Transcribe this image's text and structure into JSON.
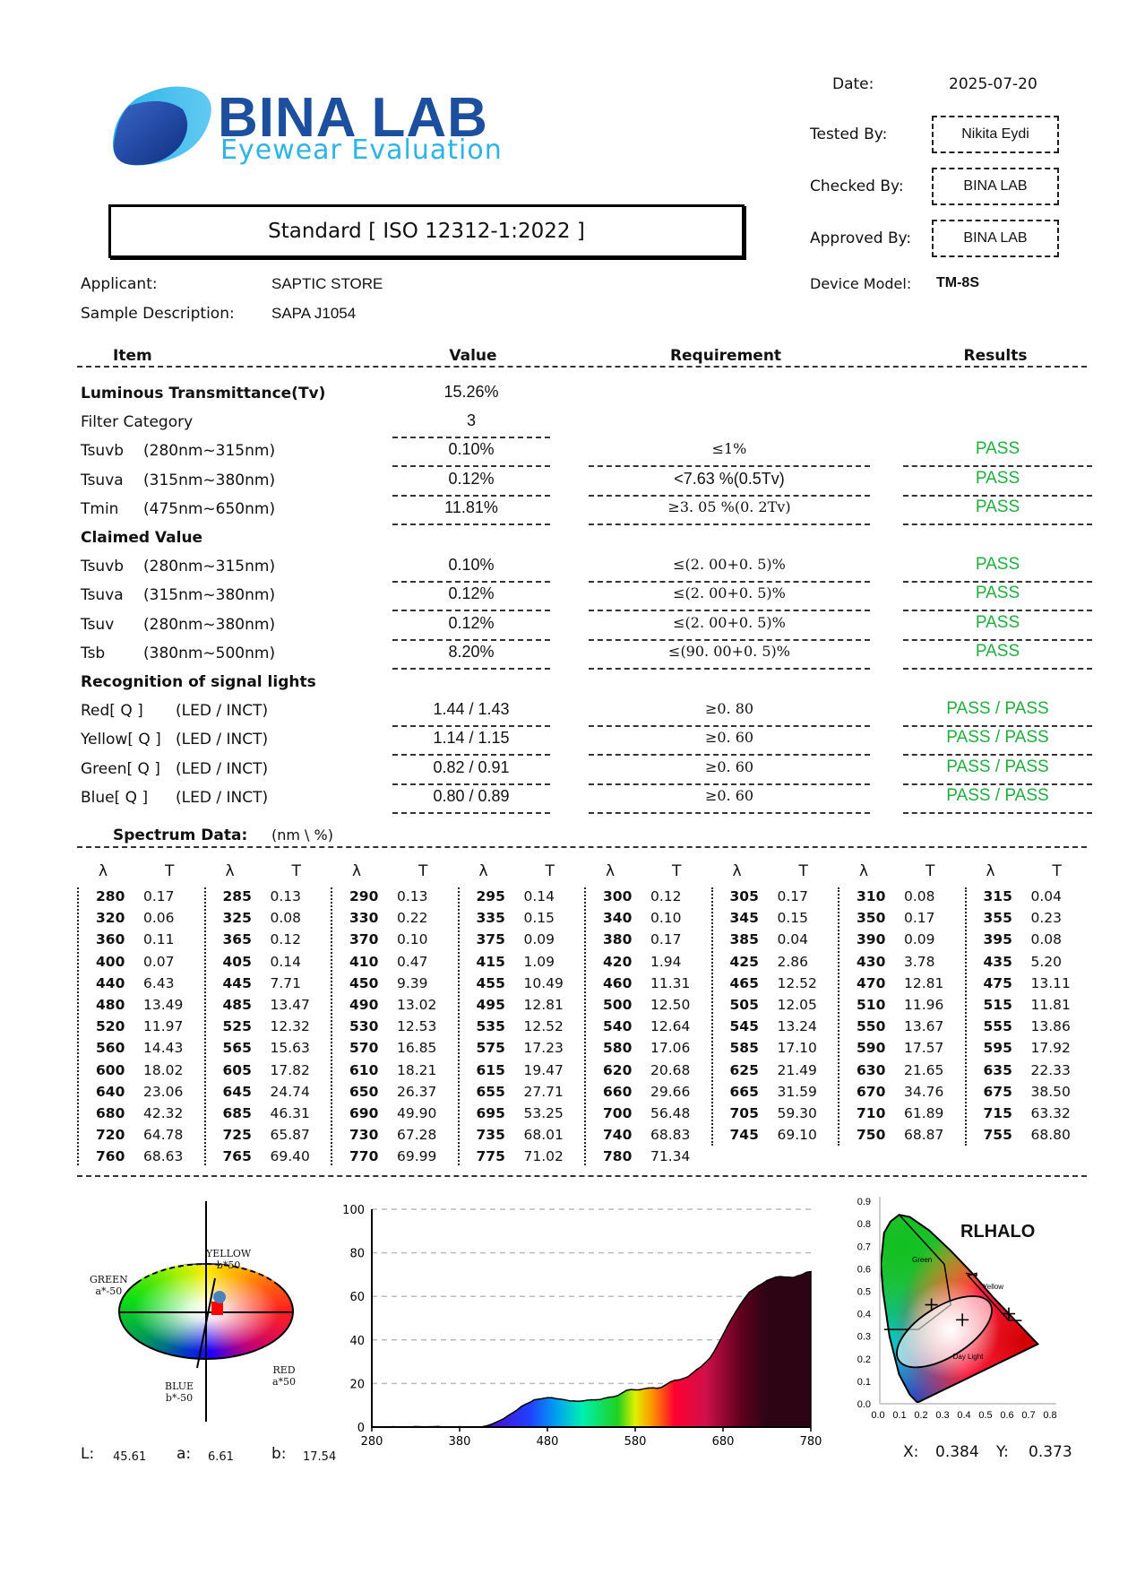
{
  "logo": {
    "name": "BINA LAB",
    "tagline": "Eyewear Evaluation"
  },
  "standard": "Standard [ ISO 12312-1:2022 ]",
  "meta": {
    "date_label": "Date:",
    "date": "2025-07-20",
    "tested_by_label": "Tested By:",
    "tested_by": "Nikita Eydi",
    "checked_by_label": "Checked By:",
    "checked_by": "BINA LAB",
    "approved_by_label": "Approved By:",
    "approved_by": "BINA LAB",
    "applicant_label": "Applicant:",
    "applicant": "SAPTIC STORE",
    "sample_label": "Sample Description:",
    "sample": "SAPA J1054",
    "device_label": "Device Model:",
    "device": "TM-8S"
  },
  "columns": {
    "item": "Item",
    "value": "Value",
    "requirement": "Requirement",
    "results": "Results"
  },
  "rows": [
    {
      "item": "Luminous Transmittance(Tv)",
      "section": true,
      "value": "15.26%"
    },
    {
      "item": "Filter Category",
      "value": "3"
    },
    {
      "item": "Tsuvb",
      "range": "(280nm~315nm)",
      "value": "0.10%",
      "requirement": "≤1%",
      "result": "PASS"
    },
    {
      "item": "Tsuva",
      "range": "(315nm~380nm)",
      "value": "0.12%",
      "requirement": "<7.63 %(0.5Tv)",
      "result": "PASS"
    },
    {
      "item": "Tmin",
      "range": "(475nm~650nm)",
      "value": "11.81%",
      "requirement": "≥3. 05 %(0. 2Tv)",
      "result": "PASS"
    },
    {
      "item": "Claimed Value",
      "section": true
    },
    {
      "item": "Tsuvb",
      "range": "(280nm~315nm)",
      "value": "0.10%",
      "requirement": "≤(2. 00+0. 5)%",
      "result": "PASS"
    },
    {
      "item": "Tsuva",
      "range": "(315nm~380nm)",
      "value": "0.12%",
      "requirement": "≤(2. 00+0. 5)%",
      "result": "PASS"
    },
    {
      "item": "Tsuv",
      "range": "(280nm~380nm)",
      "value": "0.12%",
      "requirement": "≤(2. 00+0. 5)%",
      "result": "PASS"
    },
    {
      "item": "Tsb",
      "range": "(380nm~500nm)",
      "value": "8.20%",
      "requirement": "≤(90. 00+0. 5)%",
      "result": "PASS"
    },
    {
      "item": "Recognition of signal lights",
      "section": true
    },
    {
      "item": "Red[ Q ]",
      "range": "(LED / INCT)",
      "value": "1.44 / 1.43",
      "requirement": "≥0. 80",
      "result": "PASS / PASS"
    },
    {
      "item": "Yellow[ Q ]",
      "range": "(LED / INCT)",
      "value": "1.14 / 1.15",
      "requirement": "≥0. 60",
      "result": "PASS / PASS"
    },
    {
      "item": "Green[ Q ]",
      "range": "(LED / INCT)",
      "value": "0.82 / 0.91",
      "requirement": "≥0. 60",
      "result": "PASS / PASS"
    },
    {
      "item": "Blue[ Q ]",
      "range": "(LED / INCT)",
      "value": "0.80 / 0.89",
      "requirement": "≥0. 60",
      "result": "PASS / PASS"
    }
  ],
  "spectrum": {
    "label": "Spectrum Data:",
    "unit": "(nm \\  %)",
    "col_lambda": "λ",
    "col_t": "T"
  },
  "chart_data": {
    "type": "area",
    "x": [
      280,
      285,
      290,
      295,
      300,
      305,
      310,
      315,
      320,
      325,
      330,
      335,
      340,
      345,
      350,
      355,
      360,
      365,
      370,
      375,
      380,
      385,
      390,
      395,
      400,
      405,
      410,
      415,
      420,
      425,
      430,
      435,
      440,
      445,
      450,
      455,
      460,
      465,
      470,
      475,
      480,
      485,
      490,
      495,
      500,
      505,
      510,
      515,
      520,
      525,
      530,
      535,
      540,
      545,
      550,
      555,
      560,
      565,
      570,
      575,
      580,
      585,
      590,
      595,
      600,
      605,
      610,
      615,
      620,
      625,
      630,
      635,
      640,
      645,
      650,
      655,
      660,
      665,
      670,
      675,
      680,
      685,
      690,
      695,
      700,
      705,
      710,
      715,
      720,
      725,
      730,
      735,
      740,
      745,
      750,
      755,
      760,
      765,
      770,
      775,
      780
    ],
    "x_text": [
      "280",
      "285",
      "290",
      "295",
      "300",
      "305",
      "310",
      "315",
      "320",
      "325",
      "330",
      "335",
      "340",
      "345",
      "350",
      "355",
      "360",
      "365",
      "370",
      "375",
      "380",
      "385",
      "390",
      "395",
      "400",
      "405",
      "410",
      "415",
      "420",
      "425",
      "430",
      "435",
      "440",
      "445",
      "450",
      "455",
      "460",
      "465",
      "470",
      "475",
      "480",
      "485",
      "490",
      "495",
      "500",
      "505",
      "510",
      "515",
      "520",
      "525",
      "530",
      "535",
      "540",
      "545",
      "550",
      "555",
      "560",
      "565",
      "570",
      "575",
      "580",
      "585",
      "590",
      "595",
      "600",
      "605",
      "610",
      "615",
      "620",
      "625",
      "630",
      "635",
      "640",
      "645",
      "650",
      "655",
      "660",
      "665",
      "670",
      "675",
      "680",
      "685",
      "690",
      "695",
      "700",
      "705",
      "710",
      "715",
      "720",
      "725",
      "730",
      "735",
      "740",
      "745",
      "750",
      "755",
      "760",
      "765",
      "770",
      "775",
      "780"
    ],
    "y_text": [
      "0.17",
      "0.13",
      "0.13",
      "0.14",
      "0.12",
      "0.17",
      "0.08",
      "0.04",
      "0.06",
      "0.08",
      "0.22",
      "0.15",
      "0.10",
      "0.15",
      "0.17",
      "0.23",
      "0.11",
      "0.12",
      "0.10",
      "0.09",
      "0.17",
      "0.04",
      "0.09",
      "0.08",
      "0.07",
      "0.14",
      "0.47",
      "1.09",
      "1.94",
      "2.86",
      "3.78",
      "5.20",
      "6.43",
      "7.71",
      "9.39",
      "10.49",
      "11.31",
      "12.52",
      "12.81",
      "13.11",
      "13.49",
      "13.47",
      "13.02",
      "12.81",
      "12.50",
      "12.05",
      "11.96",
      "11.81",
      "11.97",
      "12.32",
      "12.53",
      "12.52",
      "12.64",
      "13.24",
      "13.67",
      "13.86",
      "14.43",
      "15.63",
      "16.85",
      "17.23",
      "17.06",
      "17.10",
      "17.57",
      "17.92",
      "18.02",
      "17.82",
      "18.21",
      "19.47",
      "20.68",
      "21.49",
      "21.65",
      "22.33",
      "23.06",
      "24.74",
      "26.37",
      "27.71",
      "29.66",
      "31.59",
      "34.76",
      "38.50",
      "42.32",
      "46.31",
      "49.90",
      "53.25",
      "56.48",
      "59.30",
      "61.89",
      "63.32",
      "64.78",
      "65.87",
      "67.28",
      "68.01",
      "68.83",
      "69.10",
      "68.87",
      "68.80",
      "68.63",
      "69.40",
      "69.99",
      "71.02",
      "71.34"
    ],
    "xlim": [
      280,
      780
    ],
    "ylim": [
      0,
      100
    ],
    "xticks": [
      "280",
      "380",
      "480",
      "580",
      "680",
      "780"
    ],
    "yticks": [
      "0",
      "20",
      "40",
      "60",
      "80",
      "100"
    ],
    "grid": "horizontal dashed",
    "fill": "visible spectrum gradient"
  },
  "lab": {
    "yellow": "YELLOW",
    "yellow_val": "b*50",
    "green": "GREEN",
    "green_val": "a*-50",
    "red": "RED",
    "red_val": "a*50",
    "blue": "BLUE",
    "blue_val": "b*-50",
    "L_label": "L:",
    "L": "45.61",
    "a_label": "a:",
    "a": "6.61",
    "b_label": "b:",
    "b": "17.54"
  },
  "cie": {
    "title": "RLHALO",
    "green": "Green",
    "yellow": "Yellow",
    "daylight": "Day Light",
    "xticks": [
      "0.0",
      "0.1",
      "0.2",
      "0.3",
      "0.4",
      "0.5",
      "0.6",
      "0.7",
      "0.8"
    ],
    "yticks": [
      "0.0",
      "0.1",
      "0.2",
      "0.3",
      "0.4",
      "0.5",
      "0.6",
      "0.7",
      "0.8",
      "0.9"
    ],
    "x_label": "X:",
    "x": "0.384",
    "y_label": "Y:",
    "y": "0.373"
  },
  "colors": {
    "logo_blue": "#1c4f9e",
    "logo_light": "#2db3e6",
    "pass": "#1fae3e"
  }
}
